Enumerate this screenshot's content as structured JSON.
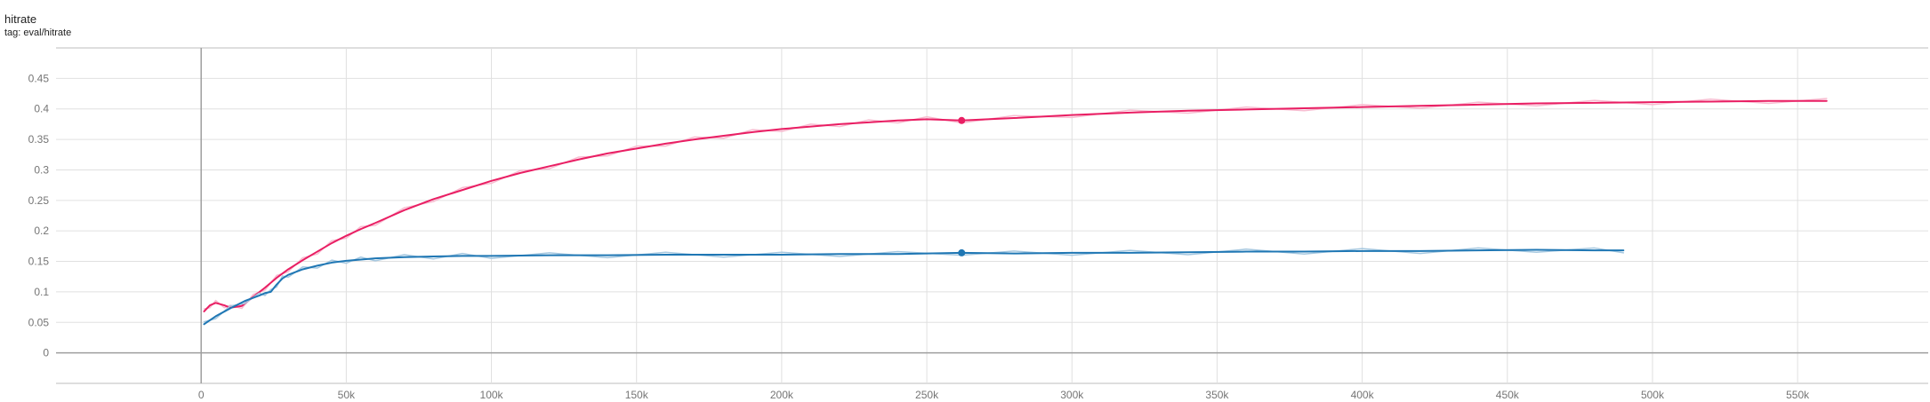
{
  "card": {
    "title": "hitrate",
    "tag": "tag: eval/hitrate"
  },
  "chart_data": {
    "type": "line",
    "title": "hitrate",
    "subtitle": "tag: eval/hitrate",
    "xlim": [
      -50000,
      595000
    ],
    "ylim": [
      -0.05,
      0.5
    ],
    "xticks": [
      0,
      50000,
      100000,
      150000,
      200000,
      250000,
      300000,
      350000,
      400000,
      450000,
      500000,
      550000
    ],
    "xtick_labels": [
      "0",
      "50k",
      "100k",
      "150k",
      "200k",
      "250k",
      "300k",
      "350k",
      "400k",
      "450k",
      "500k",
      "550k"
    ],
    "yticks": [
      0,
      0.05,
      0.1,
      0.15,
      0.2,
      0.25,
      0.3,
      0.35,
      0.4,
      0.45
    ],
    "ytick_labels": [
      "0",
      "0.05",
      "0.1",
      "0.15",
      "0.2",
      "0.25",
      "0.3",
      "0.35",
      "0.4",
      "0.45"
    ],
    "grid": true,
    "legend": "none",
    "series": [
      {
        "color": "#e91e63",
        "raw_color": "#f8bbd0",
        "marker_x": 262000,
        "marker_y": 0.381,
        "x": [
          1000,
          3000,
          5000,
          8000,
          10000,
          14000,
          18000,
          22000,
          26000,
          30000,
          35000,
          40000,
          45000,
          50000,
          55000,
          60000,
          70000,
          80000,
          90000,
          100000,
          110000,
          120000,
          130000,
          140000,
          150000,
          160000,
          170000,
          180000,
          190000,
          200000,
          210000,
          220000,
          230000,
          240000,
          250000,
          262000,
          280000,
          300000,
          320000,
          340000,
          360000,
          380000,
          400000,
          420000,
          440000,
          460000,
          480000,
          500000,
          520000,
          540000,
          560000
        ],
        "y": [
          0.068,
          0.078,
          0.082,
          0.078,
          0.074,
          0.077,
          0.092,
          0.107,
          0.123,
          0.137,
          0.152,
          0.166,
          0.18,
          0.192,
          0.203,
          0.213,
          0.234,
          0.252,
          0.267,
          0.282,
          0.295,
          0.306,
          0.317,
          0.327,
          0.335,
          0.343,
          0.35,
          0.356,
          0.362,
          0.367,
          0.371,
          0.375,
          0.378,
          0.381,
          0.383,
          0.381,
          0.385,
          0.39,
          0.394,
          0.397,
          0.399,
          0.401,
          0.403,
          0.405,
          0.407,
          0.409,
          0.41,
          0.411,
          0.412,
          0.413,
          0.413
        ]
      },
      {
        "color": "#1f77b4",
        "raw_color": "#a6c8e0",
        "marker_x": 262000,
        "marker_y": 0.164,
        "x": [
          1000,
          5000,
          10000,
          15000,
          20000,
          22000,
          24000,
          26000,
          28000,
          30000,
          35000,
          40000,
          45000,
          50000,
          55000,
          60000,
          70000,
          80000,
          90000,
          100000,
          120000,
          140000,
          160000,
          180000,
          200000,
          220000,
          240000,
          262000,
          280000,
          300000,
          320000,
          340000,
          360000,
          380000,
          400000,
          420000,
          440000,
          460000,
          480000,
          490000
        ],
        "y": [
          0.047,
          0.06,
          0.073,
          0.085,
          0.094,
          0.098,
          0.1,
          0.112,
          0.122,
          0.128,
          0.137,
          0.143,
          0.148,
          0.151,
          0.153,
          0.155,
          0.157,
          0.158,
          0.159,
          0.159,
          0.16,
          0.16,
          0.161,
          0.161,
          0.161,
          0.162,
          0.162,
          0.164,
          0.163,
          0.164,
          0.164,
          0.165,
          0.166,
          0.166,
          0.167,
          0.167,
          0.168,
          0.169,
          0.168,
          0.168
        ]
      }
    ]
  }
}
